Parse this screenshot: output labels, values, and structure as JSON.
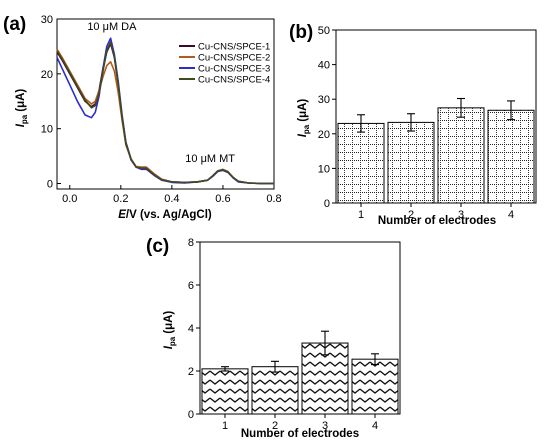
{
  "chart_data": [
    {
      "id": "a",
      "panel_label": "(a)",
      "type": "line",
      "xlabel_italic": "E",
      "xlabel_rest": "/V (vs. Ag/AgCl)",
      "ylabel_main": "I",
      "ylabel_sub": "pa",
      "ylabel_unit": "(μA)",
      "xlim": [
        -0.05,
        0.8
      ],
      "ylim": [
        -1,
        30
      ],
      "xticks": [
        {
          "v": 0.0,
          "label": "0.0"
        },
        {
          "v": 0.2,
          "label": "0.2"
        },
        {
          "v": 0.4,
          "label": "0.4"
        },
        {
          "v": 0.6,
          "label": "0.6"
        },
        {
          "v": 0.8,
          "label": "0.8"
        }
      ],
      "yticks": [
        {
          "v": 0,
          "label": "0"
        },
        {
          "v": 10,
          "label": "10"
        },
        {
          "v": 20,
          "label": "20"
        },
        {
          "v": 30,
          "label": "30"
        }
      ],
      "annotations": [
        {
          "text": "10 μM DA",
          "x": 0.165,
          "y": 28.0
        },
        {
          "text": "10 μM MT",
          "x": 0.55,
          "y": 3.9
        }
      ],
      "series": [
        {
          "name": "Cu-CNS/SPCE-1",
          "color": "#3b0b2a",
          "x": [
            -0.05,
            -0.03,
            0,
            0.03,
            0.06,
            0.085,
            0.1,
            0.115,
            0.13,
            0.145,
            0.16,
            0.175,
            0.19,
            0.205,
            0.22,
            0.24,
            0.26,
            0.28,
            0.3,
            0.33,
            0.36,
            0.4,
            0.45,
            0.5,
            0.54,
            0.56,
            0.58,
            0.6,
            0.62,
            0.64,
            0.66,
            0.7,
            0.75,
            0.8
          ],
          "y": [
            24,
            22.5,
            20,
            17.5,
            15,
            14,
            14.5,
            17,
            21,
            24,
            25.5,
            23,
            18,
            12,
            7.5,
            4.5,
            3,
            2.8,
            2.8,
            1.6,
            0.7,
            0.3,
            0.2,
            0.3,
            0.6,
            1.4,
            2.3,
            2.5,
            2.1,
            1.1,
            0.4,
            0.1,
            0,
            0
          ]
        },
        {
          "name": "Cu-CNS/SPCE-2",
          "color": "#b45a1e",
          "x": [
            -0.05,
            -0.03,
            0,
            0.03,
            0.06,
            0.085,
            0.1,
            0.115,
            0.13,
            0.145,
            0.16,
            0.175,
            0.19,
            0.205,
            0.22,
            0.24,
            0.26,
            0.28,
            0.3,
            0.33,
            0.36,
            0.4,
            0.45,
            0.5,
            0.54,
            0.56,
            0.58,
            0.6,
            0.62,
            0.64,
            0.66,
            0.7,
            0.75,
            0.8
          ],
          "y": [
            24.5,
            23,
            20.5,
            18,
            15.5,
            14.5,
            15,
            17,
            19.5,
            21.5,
            22.2,
            20.5,
            16.5,
            11.5,
            7,
            4.5,
            3.1,
            3,
            3,
            1.8,
            0.8,
            0.3,
            0.2,
            0.3,
            0.6,
            1.4,
            2.3,
            2.6,
            2.2,
            1.1,
            0.4,
            0.1,
            0,
            0
          ]
        },
        {
          "name": "Cu-CNS/SPCE-3",
          "color": "#2c2ccf",
          "x": [
            -0.05,
            -0.03,
            0,
            0.03,
            0.06,
            0.085,
            0.1,
            0.115,
            0.13,
            0.145,
            0.16,
            0.175,
            0.19,
            0.205,
            0.22,
            0.24,
            0.26,
            0.28,
            0.3,
            0.33,
            0.36,
            0.4,
            0.45,
            0.5,
            0.54,
            0.56,
            0.58,
            0.6,
            0.62,
            0.64,
            0.66,
            0.7,
            0.75,
            0.8
          ],
          "y": [
            23,
            21,
            18,
            15,
            12.5,
            12,
            13,
            16,
            21,
            25,
            26.5,
            23.5,
            18.5,
            12.5,
            7.5,
            4.3,
            3,
            2.6,
            2.6,
            1.5,
            0.6,
            0.2,
            0.1,
            0.3,
            0.6,
            1.3,
            2.2,
            2.4,
            2,
            1,
            0.3,
            0.1,
            0,
            0
          ]
        },
        {
          "name": "Cu-CNS/SPCE-4",
          "color": "#3f4a1f",
          "x": [
            -0.05,
            -0.03,
            0,
            0.03,
            0.06,
            0.085,
            0.1,
            0.115,
            0.13,
            0.145,
            0.16,
            0.175,
            0.19,
            0.205,
            0.22,
            0.24,
            0.26,
            0.28,
            0.3,
            0.33,
            0.36,
            0.4,
            0.45,
            0.5,
            0.54,
            0.56,
            0.58,
            0.6,
            0.62,
            0.64,
            0.66,
            0.7,
            0.75,
            0.8
          ],
          "y": [
            24.2,
            22.7,
            20.2,
            17.7,
            15.2,
            13.8,
            14.2,
            16.5,
            20.5,
            24.2,
            25.8,
            23,
            18,
            12,
            7.3,
            4.4,
            3,
            2.8,
            2.8,
            1.6,
            0.7,
            0.3,
            0.2,
            0.3,
            0.6,
            1.4,
            2.3,
            2.5,
            2.1,
            1.1,
            0.4,
            0.1,
            0,
            0
          ]
        }
      ]
    },
    {
      "id": "b",
      "panel_label": "(b)",
      "type": "bar",
      "categories": [
        "1",
        "2",
        "3",
        "4"
      ],
      "values": [
        23,
        23.3,
        27.5,
        26.8
      ],
      "errors": [
        2.5,
        2.5,
        2.7,
        2.7
      ],
      "xlabel": "Number of electrodes",
      "ylabel_main": "I",
      "ylabel_sub": "pa",
      "ylabel_unit": "(μA)",
      "ylim": [
        0,
        50
      ],
      "yticks": [
        "0",
        "10",
        "20",
        "30",
        "40",
        "50"
      ],
      "pattern": "grid"
    },
    {
      "id": "c",
      "panel_label": "(c)",
      "type": "bar",
      "categories": [
        "1",
        "2",
        "3",
        "4"
      ],
      "values": [
        2.1,
        2.2,
        3.3,
        2.55
      ],
      "errors": [
        0.1,
        0.25,
        0.55,
        0.25
      ],
      "xlabel": "Number of electrodes",
      "ylabel_main": "I",
      "ylabel_sub": "pa",
      "ylabel_unit": "(μA)",
      "ylim": [
        0,
        8
      ],
      "yticks": [
        "0",
        "2",
        "4",
        "6",
        "8"
      ],
      "pattern": "zigzag"
    }
  ]
}
